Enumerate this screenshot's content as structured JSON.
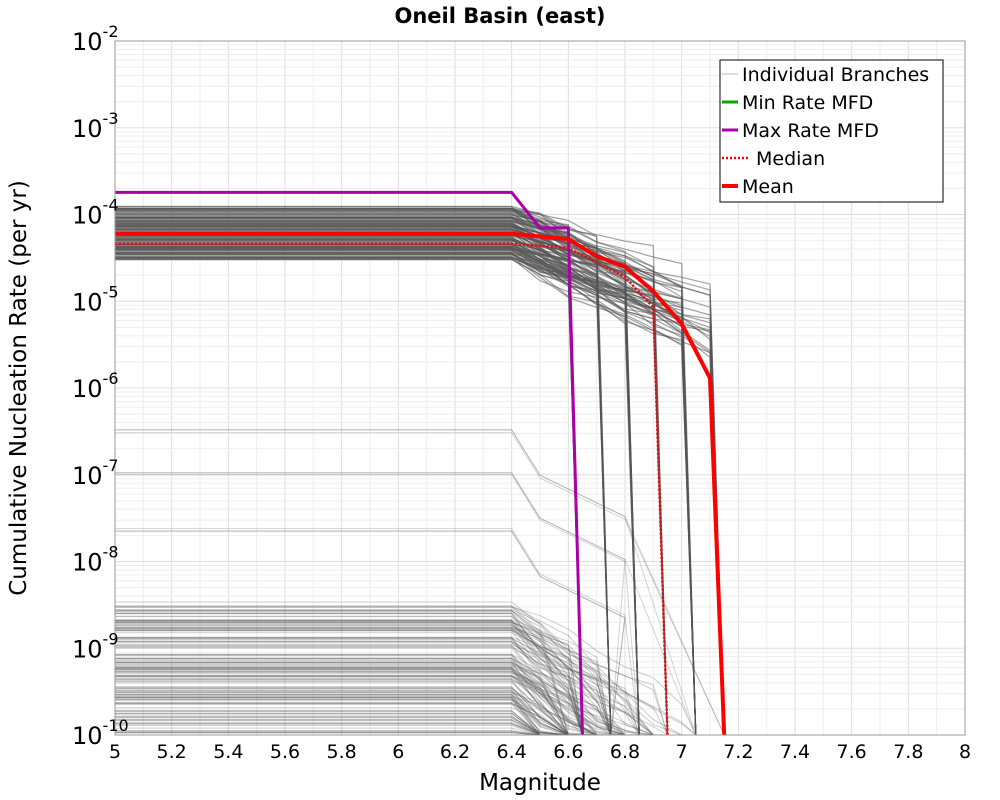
{
  "chart_data": {
    "type": "line",
    "title": "Oneil Basin (east)",
    "xlabel": "Magnitude",
    "ylabel": "Cumulative Nucleation Rate (per yr)",
    "xlim": [
      5,
      8
    ],
    "ylim": [
      1e-10,
      0.01
    ],
    "yscale": "log",
    "grid": true,
    "legend_position": "top-right",
    "x_ticks": [
      "5",
      "5.2",
      "5.4",
      "5.6",
      "5.8",
      "6",
      "6.2",
      "6.4",
      "6.6",
      "6.8",
      "7",
      "7.2",
      "7.4",
      "7.6",
      "7.8",
      "8"
    ],
    "y_ticks": [
      {
        "base": "10",
        "exp": "-10"
      },
      {
        "base": "10",
        "exp": "-9"
      },
      {
        "base": "10",
        "exp": "-8"
      },
      {
        "base": "10",
        "exp": "-7"
      },
      {
        "base": "10",
        "exp": "-6"
      },
      {
        "base": "10",
        "exp": "-5"
      },
      {
        "base": "10",
        "exp": "-4"
      },
      {
        "base": "10",
        "exp": "-3"
      },
      {
        "base": "10",
        "exp": "-2"
      }
    ],
    "series": [
      {
        "name": "Max Rate MFD",
        "color": "#aa00aa",
        "x": [
          5.0,
          6.4,
          6.5,
          6.6,
          6.65
        ],
        "y": [
          0.00018,
          0.00018,
          7e-05,
          7e-05,
          1e-10
        ]
      },
      {
        "name": "Median",
        "color": "#ff0000",
        "style": "dotted",
        "x": [
          5.0,
          6.4,
          6.6,
          6.7,
          6.8,
          6.9,
          6.95
        ],
        "y": [
          4.6e-05,
          4.6e-05,
          4.1e-05,
          2.8e-05,
          1.9e-05,
          8.5e-06,
          1e-10
        ]
      },
      {
        "name": "Mean",
        "color": "#ff0000",
        "x": [
          5.0,
          6.4,
          6.6,
          6.7,
          6.8,
          6.9,
          7.0,
          7.1,
          7.15
        ],
        "y": [
          6e-05,
          6e-05,
          5.2e-05,
          3.3e-05,
          2.5e-05,
          1.3e-05,
          5.5e-06,
          1.3e-06,
          1e-10
        ]
      }
    ],
    "branch_bands": {
      "name": "Individual Branches",
      "color": "#555555",
      "upper_band_plateau": [
        3e-05,
        0.000125
      ],
      "lower_band_plateau": [
        1e-10,
        3.5e-09
      ],
      "mid_plateau_levels": [
        3e-07,
        1e-07,
        2.2e-08
      ],
      "cutoff_magnitudes": [
        6.6,
        6.65,
        6.75,
        6.85,
        6.95,
        7.05,
        7.15
      ]
    },
    "legend": [
      {
        "label": "Individual Branches",
        "color": "#bbbbbb",
        "style": "thin"
      },
      {
        "label": "Min Rate MFD",
        "color": "#00aa00",
        "style": "solid"
      },
      {
        "label": "Max Rate MFD",
        "color": "#aa00aa",
        "style": "solid"
      },
      {
        "label": "Median",
        "color": "#ff0000",
        "style": "dotted"
      },
      {
        "label": "Mean",
        "color": "#ff0000",
        "style": "thick"
      }
    ]
  }
}
